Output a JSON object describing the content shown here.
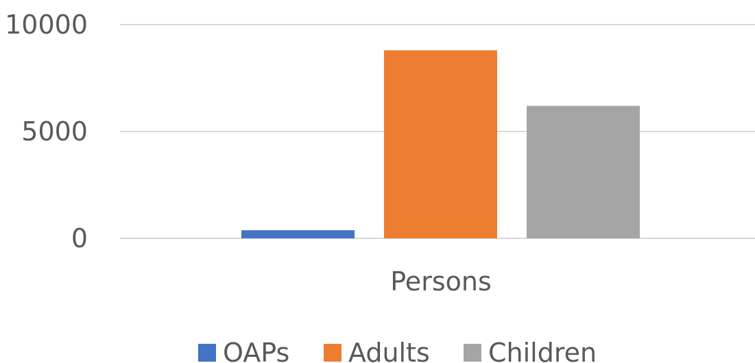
{
  "chart_data": {
    "type": "bar",
    "categories": [
      "Persons"
    ],
    "series": [
      {
        "name": "OAPs",
        "values": [
          380
        ],
        "color": "#4472C4"
      },
      {
        "name": "Adults",
        "values": [
          8800
        ],
        "color": "#ED7D31"
      },
      {
        "name": "Children",
        "values": [
          6200
        ],
        "color": "#A5A5A5"
      }
    ],
    "y_ticks": [
      0,
      5000,
      10000
    ],
    "ylim": [
      0,
      10000
    ],
    "grid": true,
    "legend_position": "bottom",
    "title": "",
    "xlabel": "",
    "ylabel": ""
  }
}
